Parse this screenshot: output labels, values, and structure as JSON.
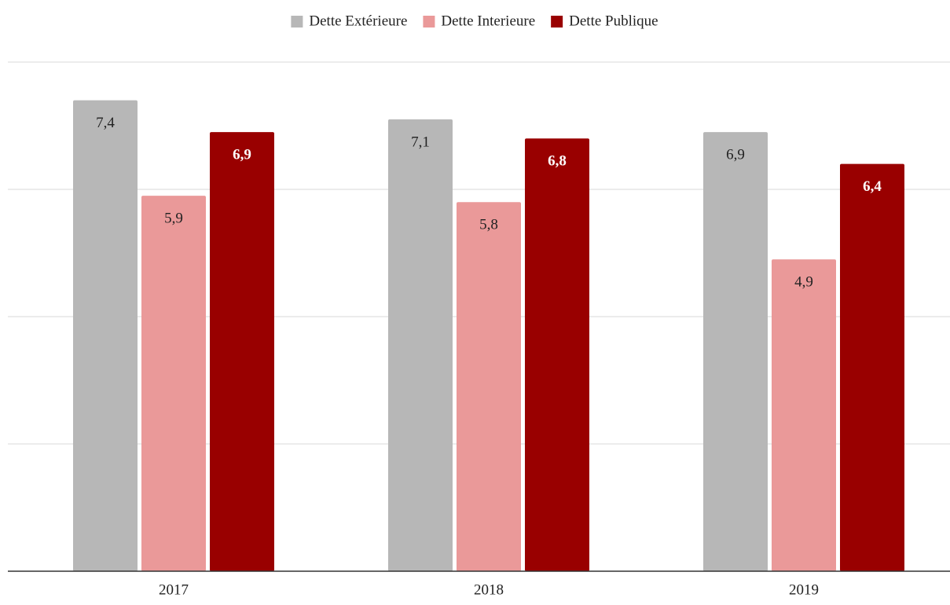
{
  "chart_data": {
    "type": "bar",
    "categories": [
      "2017",
      "2018",
      "2019"
    ],
    "series": [
      {
        "name": "Dette Extérieure",
        "color": "#b7b7b7",
        "values": [
          7.4,
          7.1,
          6.9
        ],
        "value_labels": [
          "7,4",
          "7,1",
          "6,9"
        ],
        "label_color": "#222222"
      },
      {
        "name": "Dette Interieure",
        "color": "#ea9999",
        "values": [
          5.9,
          5.8,
          4.9
        ],
        "value_labels": [
          "5,9",
          "5,8",
          "4,9"
        ],
        "label_color": "#222222"
      },
      {
        "name": "Dette Publique",
        "color": "#990000",
        "values": [
          6.9,
          6.8,
          6.4
        ],
        "value_labels": [
          "6,9",
          "6,8",
          "6,4"
        ],
        "label_color": "#ffffff"
      }
    ],
    "ylim": [
      0,
      8
    ],
    "yticks": [
      0,
      2,
      4,
      6,
      8
    ],
    "grid": true,
    "legend": "top"
  }
}
